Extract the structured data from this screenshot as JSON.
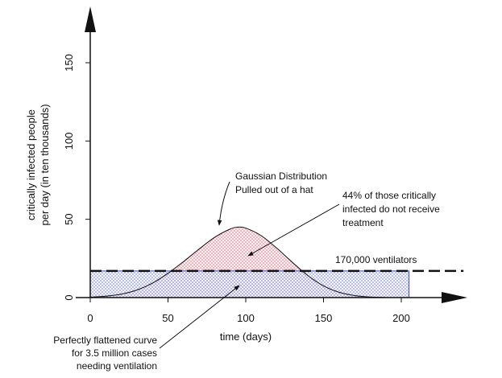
{
  "chart_data": {
    "type": "area",
    "xlabel": "time (days)",
    "ylabel": "critically infected people per day (in ten thousands)",
    "ylabel_lines": [
      "critically infected people",
      "per day (in ten thousands)"
    ],
    "xlim": [
      0,
      200
    ],
    "ylim": [
      0,
      150
    ],
    "x_ticks": [
      0,
      50,
      100,
      150,
      200
    ],
    "y_ticks": [
      0,
      50,
      100,
      150
    ],
    "grid": false,
    "series": [
      {
        "type": "area",
        "shape": "gaussian",
        "peak_x": 95,
        "peak_y": 45,
        "x": [
          0,
          10,
          20,
          30,
          40,
          50,
          60,
          70,
          80,
          90,
          95,
          100,
          110,
          120,
          130,
          140,
          150,
          160,
          170,
          180,
          190
        ],
        "y": [
          0.3,
          0.9,
          2.2,
          4.8,
          9.2,
          15.5,
          23,
          31,
          38.5,
          43.8,
          45,
          44.4,
          39.5,
          31.5,
          22.5,
          14,
          7.5,
          3.4,
          1.3,
          0.4,
          0.1
        ],
        "fill": "#e8a8b4"
      },
      {
        "type": "rect",
        "x": [
          0,
          205
        ],
        "y": [
          0,
          17
        ],
        "fill": "#9aa6dc"
      }
    ],
    "hline": {
      "y": 17,
      "style": "dashed",
      "label": "170,000 ventilators"
    },
    "annotations": [
      {
        "id": "gaussian",
        "lines": [
          "Gaussian Distribution",
          "Pulled out of a hat"
        ]
      },
      {
        "id": "untreated",
        "lines": [
          "44% of those critically",
          "infected do not receive",
          "treatment"
        ]
      },
      {
        "id": "ventilators",
        "lines": [
          "170,000 ventilators"
        ]
      },
      {
        "id": "flattened",
        "lines": [
          "Perfectly flattened curve",
          "for 3.5 million cases",
          "needing ventilation"
        ]
      }
    ]
  }
}
